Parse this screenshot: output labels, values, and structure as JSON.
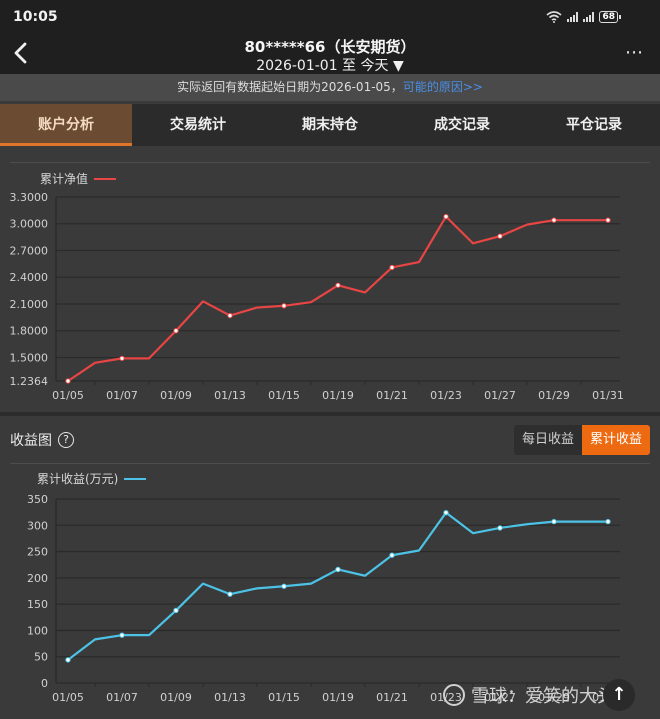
{
  "status_bar": {
    "time": "10:05",
    "battery": "68"
  },
  "header": {
    "title": "80*****66（长安期货）",
    "date_range": "2026-01-01 至 今天 ▼",
    "more_icon": "⋯"
  },
  "notice": {
    "text": "实际返回有数据起始日期为2026-01-05，",
    "link": "可能的原因>>"
  },
  "tabs": [
    {
      "label": "账户分析",
      "active": true
    },
    {
      "label": "交易统计",
      "active": false
    },
    {
      "label": "期末持仓",
      "active": false
    },
    {
      "label": "成交记录",
      "active": false
    },
    {
      "label": "平仓记录",
      "active": false
    }
  ],
  "profit_section": {
    "title": "收益图",
    "help_icon": "?",
    "toggle": [
      {
        "label": "每日收益",
        "active": false
      },
      {
        "label": "累计收益",
        "active": true
      }
    ]
  },
  "watermark": {
    "text": "雪球：爱笑的大头哥"
  },
  "fab": {
    "icon": "↑"
  },
  "colors": {
    "nav_line": "#e84545",
    "profit_line": "#4cc3e6",
    "accent": "#ee6a10",
    "active_tab": "#6b4b31"
  },
  "chart_data": [
    {
      "type": "line",
      "title": "累计净值",
      "legend": [
        "累计净值"
      ],
      "x": [
        "01/05",
        "01/06",
        "01/07",
        "01/08",
        "01/09",
        "01/12",
        "01/13",
        "01/14",
        "01/15",
        "01/16",
        "01/19",
        "01/20",
        "01/21",
        "01/22",
        "01/23",
        "01/26",
        "01/27",
        "01/28",
        "01/29",
        "01/30",
        "01/31"
      ],
      "x_tick_labels": [
        "01/05",
        "01/07",
        "01/09",
        "01/13",
        "01/15",
        "01/19",
        "01/21",
        "01/23",
        "01/27",
        "01/29",
        "01/31"
      ],
      "series": [
        {
          "name": "累计净值",
          "color": "#e84545",
          "values": [
            1.2364,
            1.44,
            1.49,
            1.49,
            1.8,
            2.13,
            1.97,
            2.06,
            2.08,
            2.12,
            2.31,
            2.23,
            2.51,
            2.57,
            3.08,
            2.78,
            2.86,
            2.99,
            3.04,
            3.04,
            3.04
          ]
        }
      ],
      "y_tick_labels": [
        "3.3000",
        "3.0000",
        "2.7000",
        "2.4000",
        "2.1000",
        "1.8000",
        "1.5000",
        "1.2364"
      ],
      "ylim": [
        1.2364,
        3.3
      ],
      "grid": true,
      "legend_position": "top-left"
    },
    {
      "type": "line",
      "title": "累计收益(万元)",
      "legend": [
        "累计收益(万元)"
      ],
      "x": [
        "01/05",
        "01/06",
        "01/07",
        "01/08",
        "01/09",
        "01/12",
        "01/13",
        "01/14",
        "01/15",
        "01/16",
        "01/19",
        "01/20",
        "01/21",
        "01/22",
        "01/23",
        "01/26",
        "01/27",
        "01/28",
        "01/29",
        "01/30",
        "01/31"
      ],
      "x_tick_labels": [
        "01/05",
        "01/07",
        "01/09",
        "01/13",
        "01/15",
        "01/19",
        "01/21",
        "01/23",
        "01/27",
        "01/29",
        "01/31"
      ],
      "series": [
        {
          "name": "累计收益(万元)",
          "color": "#4cc3e6",
          "values": [
            44,
            83,
            91,
            91,
            138,
            189,
            169,
            180,
            184,
            189,
            216,
            204,
            243,
            252,
            324,
            285,
            295,
            302,
            307,
            307,
            307
          ]
        }
      ],
      "y_tick_labels": [
        "350",
        "300",
        "250",
        "200",
        "150",
        "100",
        "50",
        "0"
      ],
      "ylim": [
        0,
        350
      ],
      "grid": true,
      "legend_position": "top-left"
    }
  ]
}
